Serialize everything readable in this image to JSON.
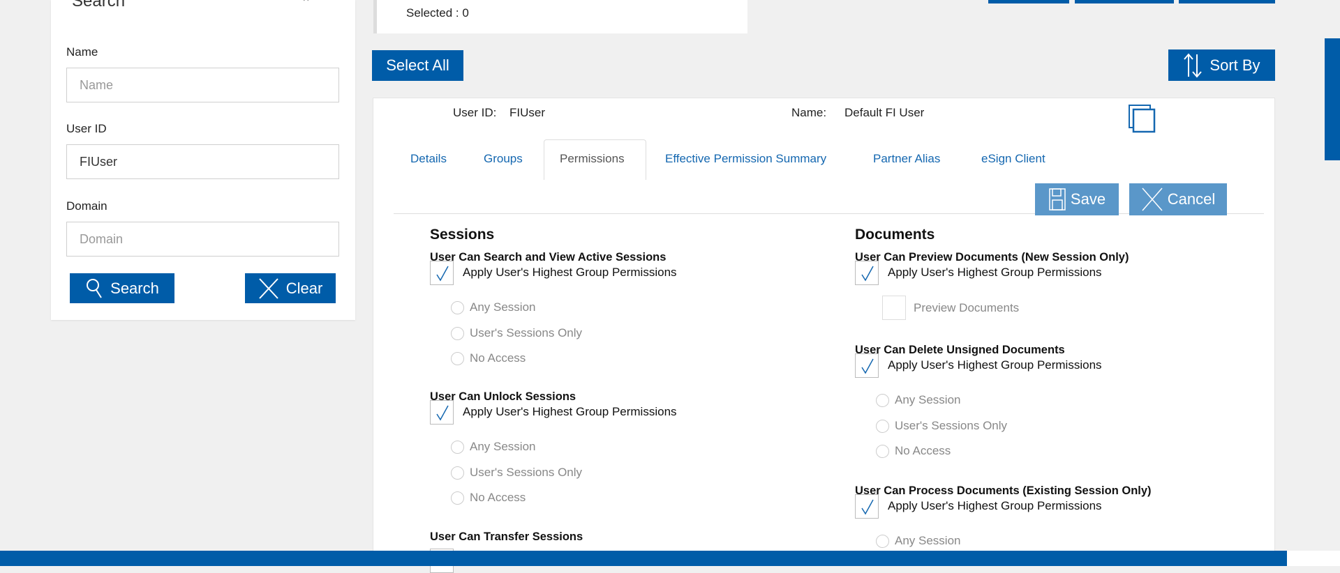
{
  "search_panel": {
    "title": "Search",
    "name_label": "Name",
    "name_placeholder": "Name",
    "name_value": "",
    "userid_label": "User ID",
    "userid_value": "FIUser",
    "domain_label": "Domain",
    "domain_placeholder": "Domain",
    "domain_value": "",
    "search_button": "Search",
    "clear_button": "Clear"
  },
  "selection": {
    "selected_text": "Selected : 0",
    "select_all": "Select All",
    "sort_by": "Sort By"
  },
  "user": {
    "userid_label": "User ID:",
    "userid": "FIUser",
    "name_label": "Name:",
    "name": "Default FI User"
  },
  "tabs": [
    {
      "label": "Details"
    },
    {
      "label": "Groups"
    },
    {
      "label": "Permissions",
      "active": true
    },
    {
      "label": "Effective Permission Summary"
    },
    {
      "label": "Partner Alias"
    },
    {
      "label": "eSign Client"
    }
  ],
  "actions": {
    "save": "Save",
    "cancel": "Cancel"
  },
  "colors": {
    "primary": "#005ca8",
    "light_button": "#5a97c9",
    "link": "#1467b0"
  },
  "sessions": {
    "title": "Sessions",
    "groups": [
      {
        "title": "User Can Search and View Active Sessions",
        "apply": "Apply User's Highest Group Permissions",
        "checked": true,
        "options": [
          "Any Session",
          "User's Sessions Only",
          "No Access"
        ]
      },
      {
        "title": "User Can Unlock Sessions",
        "apply": "Apply User's Highest Group Permissions",
        "checked": true,
        "options": [
          "Any Session",
          "User's Sessions Only",
          "No Access"
        ]
      },
      {
        "title": "User Can Transfer Sessions"
      }
    ]
  },
  "documents": {
    "title": "Documents",
    "groups": [
      {
        "title": "User Can Preview Documents (New Session Only)",
        "apply": "Apply User's Highest Group Permissions",
        "checked": true,
        "sub_checkbox": "Preview Documents"
      },
      {
        "title": "User Can Delete Unsigned Documents",
        "apply": "Apply User's Highest Group Permissions",
        "checked": true,
        "options": [
          "Any Session",
          "User's Sessions Only",
          "No Access"
        ]
      },
      {
        "title": "User Can Process Documents (Existing Session Only)",
        "apply": "Apply User's Highest Group Permissions",
        "checked": true,
        "options": [
          "Any Session"
        ]
      }
    ]
  }
}
